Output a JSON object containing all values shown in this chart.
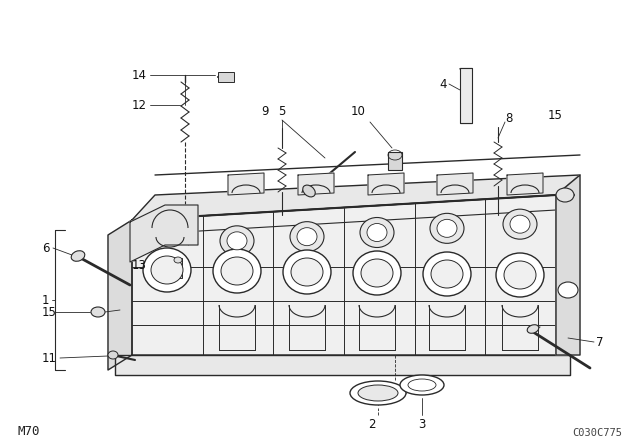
{
  "bg_color": "#ffffff",
  "line_color": "#2a2a2a",
  "figure_width": 6.4,
  "figure_height": 4.48,
  "dpi": 100,
  "bottom_left_label": "M70",
  "bottom_right_label": "C030C775",
  "label_fontsize": 8.5,
  "label_color": "#111111"
}
